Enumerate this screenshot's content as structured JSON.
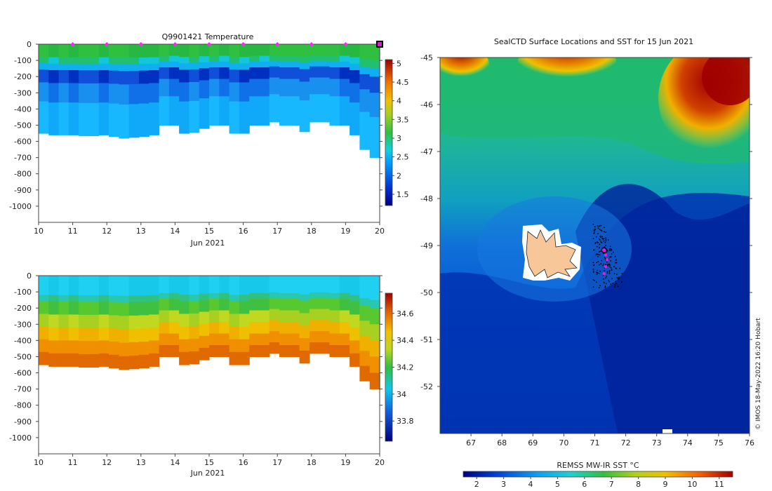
{
  "chart_data": [
    {
      "type": "heatmap",
      "title": "Q9901421  Temperature",
      "xlabel": "Jun 2021",
      "ylabel": "",
      "xlim": [
        10,
        20
      ],
      "ylim": [
        -1100,
        0
      ],
      "xticks": [
        "10",
        "11",
        "12",
        "13",
        "14",
        "15",
        "16",
        "17",
        "18",
        "19",
        "20"
      ],
      "yticks": [
        "0",
        "-100",
        "-200",
        "-300",
        "-400",
        "-500",
        "-600",
        "-700",
        "-800",
        "-900",
        "-1000"
      ],
      "colorbar": {
        "min": 1.2,
        "max": 5.1,
        "ticks": [
          "1.5",
          "2",
          "2.5",
          "3",
          "3.5",
          "4",
          "4.5",
          "5"
        ]
      },
      "profile_marker_days": [
        11,
        12,
        13,
        14,
        15,
        16,
        17,
        18,
        19,
        20
      ],
      "profile_bottom_depths": [
        -550,
        -560,
        -560,
        -560,
        -565,
        -565,
        -560,
        -570,
        -580,
        -575,
        -570,
        -560,
        -500,
        -500,
        -550,
        -545,
        -520,
        -500,
        -500,
        -550,
        -550,
        -500,
        -500,
        -480,
        -500,
        -500,
        -540,
        -480,
        -480,
        -500,
        -500,
        -560,
        -650,
        -700
      ]
    },
    {
      "type": "heatmap",
      "title": "",
      "xlabel": "Jun 2021",
      "ylabel": "",
      "xlim": [
        10,
        20
      ],
      "ylim": [
        -1100,
        0
      ],
      "xticks": [
        "10",
        "11",
        "12",
        "13",
        "14",
        "15",
        "16",
        "17",
        "18",
        "19",
        "20"
      ],
      "yticks": [
        "0",
        "-100",
        "-200",
        "-300",
        "-400",
        "-500",
        "-600",
        "-700",
        "-800",
        "-900",
        "-1000"
      ],
      "colorbar": {
        "min": 33.65,
        "max": 34.75,
        "ticks": [
          "33.8",
          "34",
          "34.2",
          "34.4",
          "34.6"
        ]
      },
      "profile_bottom_depths": [
        -550,
        -560,
        -560,
        -560,
        -565,
        -565,
        -560,
        -570,
        -580,
        -575,
        -570,
        -560,
        -500,
        -500,
        -550,
        -545,
        -520,
        -500,
        -500,
        -550,
        -550,
        -500,
        -500,
        -480,
        -500,
        -500,
        -540,
        -480,
        -480,
        -500,
        -500,
        -560,
        -650,
        -700
      ]
    },
    {
      "type": "heatmap",
      "title": "SealCTD Surface Locations and SST for 15 Jun 2021",
      "xlabel": "",
      "ylabel": "",
      "xlim": [
        66,
        76
      ],
      "ylim": [
        -53,
        -45
      ],
      "xticks": [
        "67",
        "68",
        "69",
        "70",
        "71",
        "72",
        "73",
        "74",
        "75",
        "76"
      ],
      "yticks": [
        "-45",
        "-46",
        "-47",
        "-48",
        "-49",
        "-50",
        "-51",
        "-52"
      ],
      "colorbar": {
        "label": "REMSS MW-IR SST °C",
        "min": 1.5,
        "max": 11.5,
        "ticks": [
          "2",
          "3",
          "4",
          "5",
          "6",
          "7",
          "8",
          "9",
          "10",
          "11"
        ]
      },
      "surface_locations_recent": [
        [
          71.3,
          -49.1
        ],
        [
          71.35,
          -49.2
        ],
        [
          71.4,
          -49.3
        ],
        [
          71.35,
          -49.45
        ],
        [
          71.3,
          -49.6
        ]
      ],
      "credit": "© IMOS 18-May-2022 16:20 Hobart"
    }
  ]
}
